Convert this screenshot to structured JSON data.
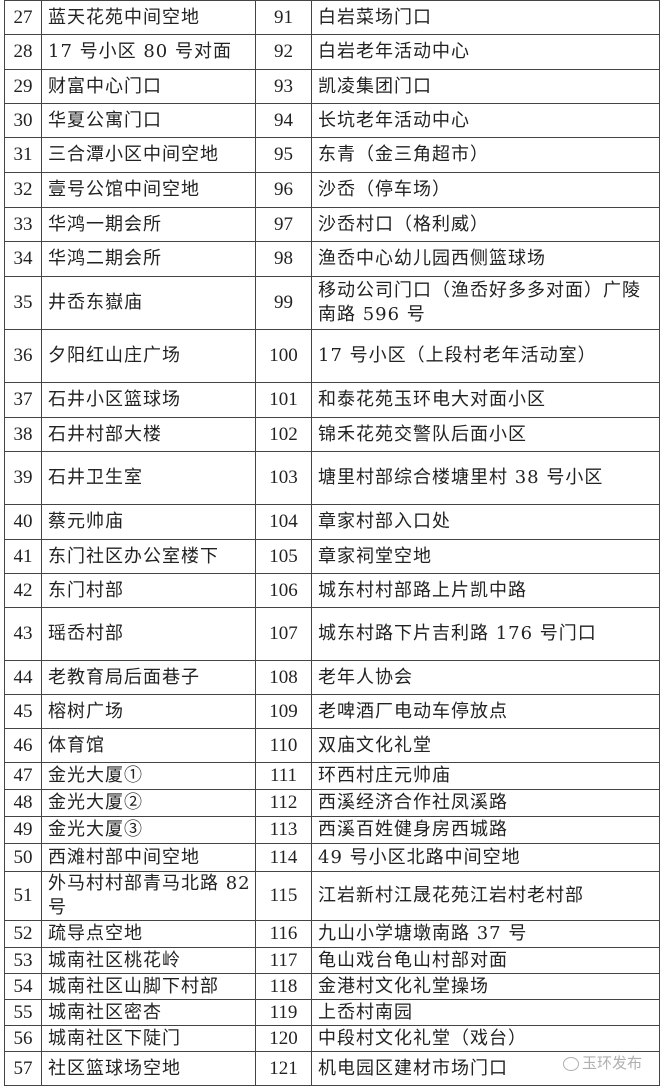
{
  "rows": [
    {
      "n1": "27",
      "p1": "蓝天花苑中间空地",
      "n2": "91",
      "p2": "白岩菜场门口"
    },
    {
      "n1": "28",
      "p1": "17 号小区 80 号对面",
      "n2": "92",
      "p2": "白岩老年活动中心"
    },
    {
      "n1": "29",
      "p1": "财富中心门口",
      "n2": "93",
      "p2": "凯凌集团门口"
    },
    {
      "n1": "30",
      "p1": "华夏公寓门口",
      "n2": "94",
      "p2": "长坑老年活动中心"
    },
    {
      "n1": "31",
      "p1": "三合潭小区中间空地",
      "n2": "95",
      "p2": "东青（金三角超市）"
    },
    {
      "n1": "32",
      "p1": "壹号公馆中间空地",
      "n2": "96",
      "p2": "沙岙（停车场）"
    },
    {
      "n1": "33",
      "p1": "华鸿一期会所",
      "n2": "97",
      "p2": "沙岙村口（格利威）"
    },
    {
      "n1": "34",
      "p1": "华鸿二期会所",
      "n2": "98",
      "p2": "渔岙中心幼儿园西侧篮球场"
    },
    {
      "n1": "35",
      "p1": "井岙东嶽庙",
      "n2": "99",
      "p2": "移动公司门口（渔岙好多多对面）广陵南路 596 号"
    },
    {
      "n1": "36",
      "p1": "夕阳红山庄广场",
      "n2": "100",
      "p2": "17 号小区（上段村老年活动室）"
    },
    {
      "n1": "37",
      "p1": "石井小区篮球场",
      "n2": "101",
      "p2": "和泰花苑玉环电大对面小区"
    },
    {
      "n1": "38",
      "p1": "石井村部大楼",
      "n2": "102",
      "p2": "锦禾花苑交警队后面小区"
    },
    {
      "n1": "39",
      "p1": "石井卫生室",
      "n2": "103",
      "p2": "塘里村部综合楼塘里村 38 号小区"
    },
    {
      "n1": "40",
      "p1": "蔡元帅庙",
      "n2": "104",
      "p2": "章家村部入口处"
    },
    {
      "n1": "41",
      "p1": "东门社区办公室楼下",
      "n2": "105",
      "p2": "章家祠堂空地"
    },
    {
      "n1": "42",
      "p1": "东门村部",
      "n2": "106",
      "p2": "城东村村部路上片凯中路"
    },
    {
      "n1": "43",
      "p1": "瑶岙村部",
      "n2": "107",
      "p2": "城东村路下片吉利路 176 号门口"
    },
    {
      "n1": "44",
      "p1": "老教育局后面巷子",
      "n2": "108",
      "p2": "老年人协会"
    },
    {
      "n1": "45",
      "p1": "榕树广场",
      "n2": "109",
      "p2": "老啤酒厂电动车停放点"
    },
    {
      "n1": "46",
      "p1": "体育馆",
      "n2": "110",
      "p2": "双庙文化礼堂"
    },
    {
      "n1": "47",
      "p1": "金光大厦①",
      "n2": "111",
      "p2": "环西村庄元帅庙"
    },
    {
      "n1": "48",
      "p1": "金光大厦②",
      "n2": "112",
      "p2": "西溪经济合作社凤溪路"
    },
    {
      "n1": "49",
      "p1": "金光大厦③",
      "n2": "113",
      "p2": "西溪百姓健身房西城路"
    },
    {
      "n1": "50",
      "p1": "西滩村部中间空地",
      "n2": "114",
      "p2": "49 号小区北路中间空地"
    },
    {
      "n1": "51",
      "p1": "外马村村部青马北路 82 号",
      "n2": "115",
      "p2": "江岩新村江晟花苑江岩村老村部"
    },
    {
      "n1": "52",
      "p1": "疏导点空地",
      "n2": "116",
      "p2": "九山小学塘墩南路 37 号"
    },
    {
      "n1": "53",
      "p1": "城南社区桃花岭",
      "n2": "117",
      "p2": "龟山戏台龟山村部对面"
    },
    {
      "n1": "54",
      "p1": "城南社区山脚下村部",
      "n2": "118",
      "p2": "金港村文化礼堂操场"
    },
    {
      "n1": "55",
      "p1": "城南社区密杏",
      "n2": "119",
      "p2": "上岙村南园"
    },
    {
      "n1": "56",
      "p1": "城南社区下陡门",
      "n2": "120",
      "p2": "中段村文化礼堂（戏台）"
    },
    {
      "n1": "57",
      "p1": "社区篮球场空地",
      "n2": "121",
      "p2": "机电园区建材市场门口"
    }
  ],
  "watermark": "玉环发布"
}
